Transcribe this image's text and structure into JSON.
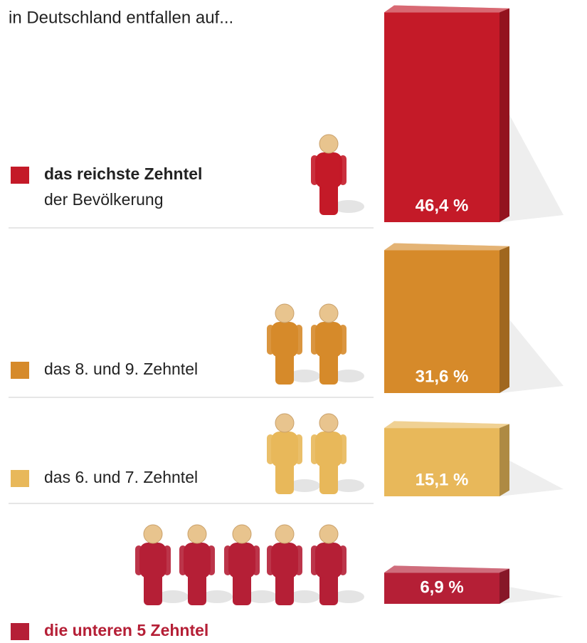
{
  "chart_data": {
    "type": "bar",
    "title": "in Deutschland entfallen auf...",
    "categories": [
      "das reichste Zehntel",
      "das 8. und 9. Zehntel",
      "das 6. und 7. Zehntel",
      "die unteren 5 Zehntel"
    ],
    "category_note": "der Bevölkerung",
    "values": [
      46.4,
      31.6,
      15.1,
      6.9
    ],
    "value_labels": [
      "46,4 %",
      "31,6 %",
      "15,1 %",
      "6,9 %"
    ],
    "colors": [
      "#c41a28",
      "#d68a2a",
      "#e8b85a",
      "#b51f36"
    ]
  }
}
